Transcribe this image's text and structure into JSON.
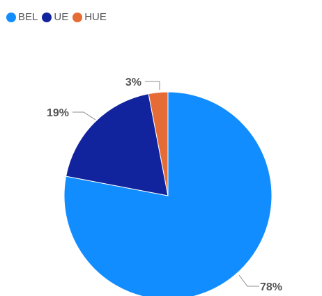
{
  "chart_data": {
    "type": "pie",
    "categories": [
      "BEL",
      "UE",
      "HUE"
    ],
    "values": [
      78,
      19,
      3
    ],
    "value_labels": [
      "78%",
      "19%",
      "3%"
    ],
    "colors": [
      "#118DFF",
      "#12239E",
      "#E66C37"
    ],
    "legend": {
      "placement": "top-left",
      "entries": [
        "BEL",
        "UE",
        "HUE"
      ]
    }
  }
}
